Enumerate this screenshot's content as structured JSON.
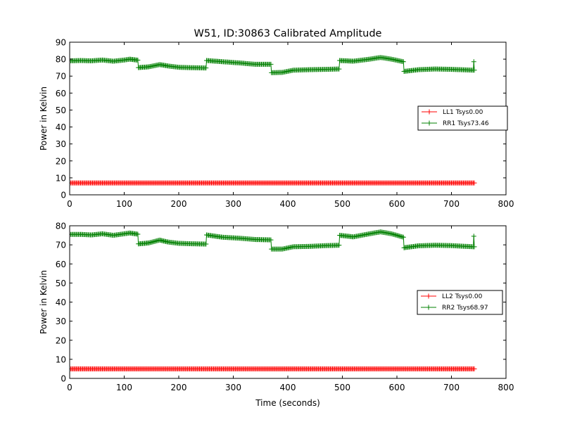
{
  "figure": {
    "title": "W51, ID:30863 Calibrated Amplitude"
  },
  "chart_data": [
    {
      "type": "line",
      "title": "W51, ID:30863 Calibrated Amplitude",
      "xlabel": "",
      "ylabel": "Power in Kelvin",
      "xlim": [
        0,
        800
      ],
      "ylim": [
        0,
        90
      ],
      "xticks": [
        0,
        100,
        200,
        300,
        400,
        500,
        600,
        700,
        800
      ],
      "yticks": [
        0,
        10,
        20,
        30,
        40,
        50,
        60,
        70,
        80,
        90
      ],
      "legend_position": "center-right",
      "series": [
        {
          "name": "LL1 Tsys0.00",
          "color": "#ff0000",
          "points": [
            [
              0,
              7.0
            ],
            [
              742,
              7.0
            ]
          ]
        },
        {
          "name": "RR1 Tsys73.46",
          "color": "#008000",
          "points": [
            [
              0,
              79.0
            ],
            [
              20,
              79.2
            ],
            [
              40,
              79.0
            ],
            [
              60,
              79.5
            ],
            [
              80,
              78.8
            ],
            [
              100,
              79.5
            ],
            [
              110,
              80.0
            ],
            [
              125,
              79.4
            ],
            [
              126,
              75.0
            ],
            [
              145,
              75.5
            ],
            [
              165,
              76.8
            ],
            [
              180,
              76.0
            ],
            [
              200,
              75.2
            ],
            [
              220,
              75.0
            ],
            [
              250,
              74.8
            ],
            [
              251,
              79.2
            ],
            [
              280,
              78.5
            ],
            [
              310,
              77.8
            ],
            [
              340,
              77.0
            ],
            [
              369,
              77.0
            ],
            [
              370,
              72.0
            ],
            [
              390,
              72.2
            ],
            [
              410,
              73.5
            ],
            [
              440,
              73.8
            ],
            [
              470,
              74.0
            ],
            [
              494,
              74.2
            ],
            [
              495,
              79.2
            ],
            [
              520,
              78.8
            ],
            [
              550,
              80.0
            ],
            [
              570,
              81.0
            ],
            [
              590,
              80.0
            ],
            [
              612,
              78.5
            ],
            [
              613,
              72.8
            ],
            [
              640,
              73.8
            ],
            [
              670,
              74.2
            ],
            [
              700,
              74.0
            ],
            [
              740,
              73.5
            ],
            [
              741,
              78.5
            ],
            [
              742,
              73.5
            ]
          ]
        }
      ]
    },
    {
      "type": "line",
      "title": "",
      "xlabel": "Time (seconds)",
      "ylabel": "Power in Kelvin",
      "xlim": [
        0,
        800
      ],
      "ylim": [
        0,
        80
      ],
      "xticks": [
        0,
        100,
        200,
        300,
        400,
        500,
        600,
        700,
        800
      ],
      "yticks": [
        0,
        10,
        20,
        30,
        40,
        50,
        60,
        70,
        80
      ],
      "legend_position": "center-right",
      "series": [
        {
          "name": "LL2 Tsys0.00",
          "color": "#ff0000",
          "points": [
            [
              0,
              5.0
            ],
            [
              742,
              5.0
            ]
          ]
        },
        {
          "name": "RR2 Tsys68.97",
          "color": "#008000",
          "points": [
            [
              0,
              75.5
            ],
            [
              20,
              75.5
            ],
            [
              40,
              75.2
            ],
            [
              60,
              75.8
            ],
            [
              80,
              75.0
            ],
            [
              100,
              75.8
            ],
            [
              110,
              76.2
            ],
            [
              125,
              75.6
            ],
            [
              126,
              70.5
            ],
            [
              145,
              71.0
            ],
            [
              165,
              72.5
            ],
            [
              180,
              71.5
            ],
            [
              200,
              70.8
            ],
            [
              220,
              70.6
            ],
            [
              250,
              70.4
            ],
            [
              251,
              75.2
            ],
            [
              280,
              74.0
            ],
            [
              310,
              73.5
            ],
            [
              340,
              72.8
            ],
            [
              369,
              72.6
            ],
            [
              370,
              67.8
            ],
            [
              390,
              67.8
            ],
            [
              410,
              69.0
            ],
            [
              440,
              69.2
            ],
            [
              470,
              69.6
            ],
            [
              494,
              69.8
            ],
            [
              495,
              75.0
            ],
            [
              520,
              74.2
            ],
            [
              550,
              75.8
            ],
            [
              570,
              76.8
            ],
            [
              590,
              75.8
            ],
            [
              612,
              74.0
            ],
            [
              613,
              68.5
            ],
            [
              640,
              69.5
            ],
            [
              670,
              69.8
            ],
            [
              700,
              69.6
            ],
            [
              740,
              69.0
            ],
            [
              741,
              74.5
            ],
            [
              742,
              69.0
            ]
          ]
        }
      ]
    }
  ]
}
